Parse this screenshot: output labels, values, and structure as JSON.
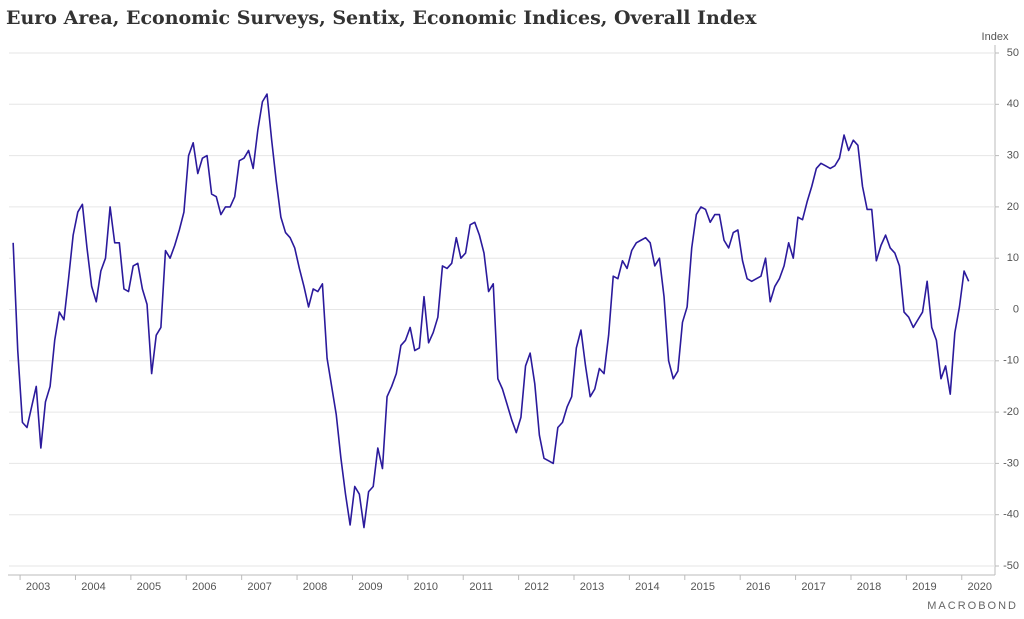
{
  "chart_data": {
    "type": "line",
    "title": "Euro Area, Economic Surveys, Sentix, Economic Indices, Overall Index",
    "y_axis_label": "Index",
    "source": "MACROBOND",
    "x": [
      2002.875,
      2002.958,
      2003.042,
      2003.125,
      2003.208,
      2003.292,
      2003.375,
      2003.458,
      2003.542,
      2003.625,
      2003.708,
      2003.792,
      2003.875,
      2003.958,
      2004.042,
      2004.125,
      2004.208,
      2004.292,
      2004.375,
      2004.458,
      2004.542,
      2004.625,
      2004.708,
      2004.792,
      2004.875,
      2004.958,
      2005.042,
      2005.125,
      2005.208,
      2005.292,
      2005.375,
      2005.458,
      2005.542,
      2005.625,
      2005.708,
      2005.792,
      2005.875,
      2005.958,
      2006.042,
      2006.125,
      2006.208,
      2006.292,
      2006.375,
      2006.458,
      2006.542,
      2006.625,
      2006.708,
      2006.792,
      2006.875,
      2006.958,
      2007.042,
      2007.125,
      2007.208,
      2007.292,
      2007.375,
      2007.458,
      2007.542,
      2007.625,
      2007.708,
      2007.792,
      2007.875,
      2007.958,
      2008.042,
      2008.125,
      2008.208,
      2008.292,
      2008.375,
      2008.458,
      2008.542,
      2008.625,
      2008.708,
      2008.792,
      2008.875,
      2008.958,
      2009.042,
      2009.125,
      2009.208,
      2009.292,
      2009.375,
      2009.458,
      2009.542,
      2009.625,
      2009.708,
      2009.792,
      2009.875,
      2009.958,
      2010.042,
      2010.125,
      2010.208,
      2010.292,
      2010.375,
      2010.458,
      2010.542,
      2010.625,
      2010.708,
      2010.792,
      2010.875,
      2010.958,
      2011.042,
      2011.125,
      2011.208,
      2011.292,
      2011.375,
      2011.458,
      2011.542,
      2011.625,
      2011.708,
      2011.792,
      2011.875,
      2011.958,
      2012.042,
      2012.125,
      2012.208,
      2012.292,
      2012.375,
      2012.458,
      2012.542,
      2012.625,
      2012.708,
      2012.792,
      2012.875,
      2012.958,
      2013.042,
      2013.125,
      2013.208,
      2013.292,
      2013.375,
      2013.458,
      2013.542,
      2013.625,
      2013.708,
      2013.792,
      2013.875,
      2013.958,
      2014.042,
      2014.125,
      2014.208,
      2014.292,
      2014.375,
      2014.458,
      2014.542,
      2014.625,
      2014.708,
      2014.792,
      2014.875,
      2014.958,
      2015.042,
      2015.125,
      2015.208,
      2015.292,
      2015.375,
      2015.458,
      2015.542,
      2015.625,
      2015.708,
      2015.792,
      2015.875,
      2015.958,
      2016.042,
      2016.125,
      2016.208,
      2016.292,
      2016.375,
      2016.458,
      2016.542,
      2016.625,
      2016.708,
      2016.792,
      2016.875,
      2016.958,
      2017.042,
      2017.125,
      2017.208,
      2017.292,
      2017.375,
      2017.458,
      2017.542,
      2017.625,
      2017.708,
      2017.792,
      2017.875,
      2017.958,
      2018.042,
      2018.125,
      2018.208,
      2018.292,
      2018.375,
      2018.458,
      2018.542,
      2018.625,
      2018.708,
      2018.792,
      2018.875,
      2018.958,
      2019.042,
      2019.125,
      2019.208,
      2019.292,
      2019.375,
      2019.458,
      2019.542,
      2019.625,
      2019.708,
      2019.792,
      2019.875,
      2019.958,
      2020.042,
      2020.125
    ],
    "series": [
      {
        "name": "Overall Index",
        "color": "#2b1a9c",
        "values": [
          13,
          -8,
          -22,
          -23,
          -19,
          -15,
          -27,
          -18,
          -15,
          -6,
          -0.5,
          -2,
          6,
          14.5,
          19,
          20.5,
          12,
          4.5,
          1.5,
          7.5,
          10,
          20,
          13,
          13,
          4,
          3.5,
          8.5,
          9,
          4,
          1,
          -12.5,
          -5,
          -3.5,
          11.5,
          10,
          12.5,
          15.5,
          19,
          30,
          32.5,
          26.5,
          29.5,
          30,
          22.5,
          22,
          18.5,
          20,
          20,
          22,
          29,
          29.5,
          31,
          27.5,
          35,
          40.5,
          42,
          33,
          25,
          18,
          15,
          14,
          12,
          8,
          4.5,
          0.5,
          4,
          3.5,
          5,
          -9.5,
          -15,
          -20.5,
          -29,
          -36,
          -42,
          -34.5,
          -36,
          -42.5,
          -35.5,
          -34.5,
          -27,
          -31,
          -17,
          -15,
          -12.5,
          -7,
          -6,
          -3.5,
          -8,
          -7.5,
          2.5,
          -6.5,
          -4.5,
          -1.5,
          8.5,
          8,
          9,
          14,
          10,
          11,
          16.5,
          17,
          14.5,
          11,
          3.5,
          5,
          -13.5,
          -15.5,
          -18.5,
          -21.5,
          -24,
          -21,
          -11,
          -8.5,
          -14.5,
          -24.5,
          -29,
          -29.5,
          -30,
          -23,
          -22,
          -19,
          -17,
          -7.5,
          -4,
          -11,
          -17,
          -15.5,
          -11.5,
          -12.5,
          -5,
          6.5,
          6,
          9.5,
          8,
          11.5,
          13,
          13.5,
          14,
          13,
          8.5,
          10,
          2.5,
          -10,
          -13.5,
          -12,
          -2.5,
          0.5,
          12,
          18.5,
          20,
          19.5,
          17,
          18.5,
          18.5,
          13.5,
          12,
          15,
          15.5,
          9.5,
          6,
          5.5,
          6,
          6.5,
          10,
          1.5,
          4.5,
          6,
          8.5,
          13,
          10,
          18,
          17.5,
          21,
          24,
          27.5,
          28.5,
          28,
          27.5,
          28,
          29.5,
          34,
          31,
          33,
          32,
          24,
          19.5,
          19.5,
          9.5,
          12.5,
          14.5,
          12,
          11,
          8.5,
          -0.5,
          -1.5,
          -3.5,
          -2,
          -0.5,
          5.5,
          -3.5,
          -6,
          -13.5,
          -11,
          -16.5,
          -4.5,
          0.5,
          7.5,
          5.5
        ]
      }
    ],
    "xlim": [
      2002.8,
      2020.6
    ],
    "xticks": [
      2003,
      2004,
      2005,
      2006,
      2007,
      2008,
      2009,
      2010,
      2011,
      2012,
      2013,
      2014,
      2015,
      2016,
      2017,
      2018,
      2019,
      2020
    ],
    "ylim": [
      -50,
      50
    ],
    "yticks": [
      -50,
      -40,
      -30,
      -20,
      -10,
      0,
      10,
      20,
      30,
      40,
      50
    ],
    "grid": true
  }
}
